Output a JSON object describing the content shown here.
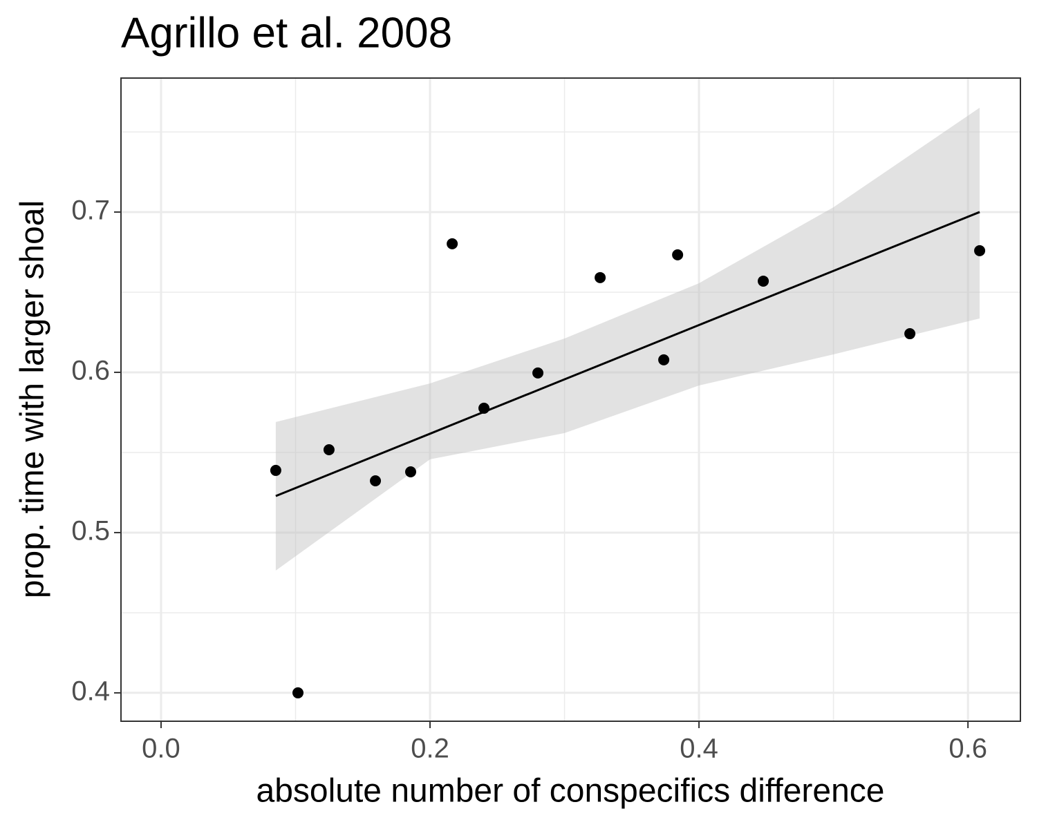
{
  "chart_data": {
    "type": "scatter",
    "title": "Agrillo et al. 2008",
    "x_label": "absolute number of conspecifics difference",
    "y_label": "prop. time with larger shoal",
    "x": [
      0.0853,
      0.1018,
      0.1249,
      0.1594,
      0.1856,
      0.2165,
      0.2401,
      0.2802,
      0.3265,
      0.3738,
      0.3841,
      0.4478,
      0.5568,
      0.6087
    ],
    "values": [
      0.5388,
      0.4,
      0.5517,
      0.5323,
      0.5379,
      0.6802,
      0.5776,
      0.5996,
      0.6591,
      0.6078,
      0.6733,
      0.6569,
      0.6241,
      0.6759
    ],
    "color": "#000000",
    "fit": {
      "x": [
        0.0853,
        0.2,
        0.3,
        0.4,
        0.5,
        0.6087
      ],
      "y": [
        0.5228,
        0.5617,
        0.5956,
        0.6295,
        0.6633,
        0.7
      ],
      "lower": [
        0.4763,
        0.5457,
        0.5621,
        0.5918,
        0.6112,
        0.6336
      ],
      "upper": [
        0.569,
        0.5931,
        0.6211,
        0.6556,
        0.703,
        0.7651
      ],
      "color": "#000000",
      "band_color": "#bebebe"
    },
    "xlim": [
      -0.0298,
      0.639
    ],
    "ylim": [
      0.3823,
      0.7836
    ],
    "xticks": [
      {
        "value": 0,
        "label": "0.0"
      },
      0.2,
      0.4,
      0.6
    ],
    "yticks": [
      0.4,
      0.5,
      0.6,
      0.7
    ],
    "xminor": [
      0.1,
      0.3,
      0.5
    ],
    "yminor": [
      0.45,
      0.55,
      0.65,
      0.75
    ],
    "grid": true
  }
}
